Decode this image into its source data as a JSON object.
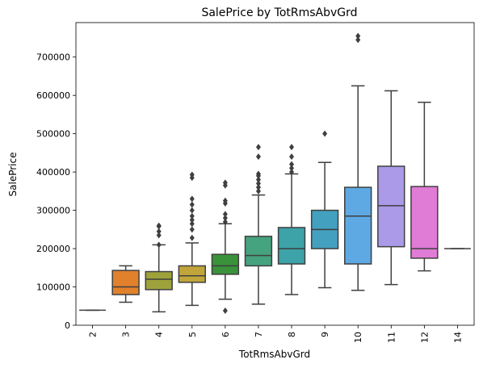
{
  "chart_data": {
    "type": "box",
    "title": "SalePrice by TotRmsAbvGrd",
    "xlabel": "TotRmsAbvGrd",
    "ylabel": "SalePrice",
    "ylim": [
      0,
      790000
    ],
    "yticks": [
      0,
      100000,
      200000,
      300000,
      400000,
      500000,
      600000,
      700000
    ],
    "grid": false,
    "boxes": [
      {
        "category": "2",
        "color": "#3274a1",
        "wlo": 39300,
        "q1": 39300,
        "median": 39300,
        "q3": 39300,
        "whi": 39300,
        "outliers": []
      },
      {
        "category": "3",
        "color": "#e1812c",
        "wlo": 60000,
        "q1": 80000,
        "median": 100000,
        "q3": 143000,
        "whi": 155000,
        "outliers": []
      },
      {
        "category": "4",
        "color": "#9da33a",
        "wlo": 35000,
        "q1": 93000,
        "median": 120000,
        "q3": 140000,
        "whi": 210000,
        "outliers": [
          210000,
          235000,
          245000,
          258000,
          260000
        ]
      },
      {
        "category": "5",
        "color": "#c1a53b",
        "wlo": 52000,
        "q1": 112000,
        "median": 129000,
        "q3": 155000,
        "whi": 215000,
        "outliers": [
          228000,
          250000,
          265000,
          275000,
          285000,
          300000,
          315000,
          330000,
          385000,
          393000
        ]
      },
      {
        "category": "6",
        "color": "#3a923a",
        "wlo": 68000,
        "q1": 133000,
        "median": 155000,
        "q3": 185000,
        "whi": 265000,
        "outliers": [
          37900,
          270000,
          280000,
          290000,
          318000,
          325000,
          365000,
          372000
        ]
      },
      {
        "category": "7",
        "color": "#45a37f",
        "wlo": 55000,
        "q1": 155000,
        "median": 182000,
        "q3": 232000,
        "whi": 340000,
        "outliers": [
          350000,
          360000,
          370000,
          380000,
          390000,
          395000,
          440000,
          465000
        ]
      },
      {
        "category": "8",
        "color": "#3da3a8",
        "wlo": 80000,
        "q1": 160000,
        "median": 200000,
        "q3": 255000,
        "whi": 395000,
        "outliers": [
          400000,
          410000,
          420000,
          440000,
          465000
        ]
      },
      {
        "category": "9",
        "color": "#44a0bf",
        "wlo": 98000,
        "q1": 200000,
        "median": 250000,
        "q3": 300000,
        "whi": 425000,
        "outliers": [
          500000
        ]
      },
      {
        "category": "10",
        "color": "#5ea9e3",
        "wlo": 91000,
        "q1": 160000,
        "median": 285000,
        "q3": 360000,
        "whi": 625000,
        "outliers": [
          745000,
          755000
        ]
      },
      {
        "category": "11",
        "color": "#ab9ae8",
        "wlo": 106000,
        "q1": 205000,
        "median": 312000,
        "q3": 415000,
        "whi": 612000,
        "outliers": []
      },
      {
        "category": "12",
        "color": "#e07bd6",
        "wlo": 142000,
        "q1": 175000,
        "median": 200000,
        "q3": 362000,
        "whi": 582000,
        "outliers": []
      },
      {
        "category": "14",
        "color": "#e5849d",
        "wlo": 200000,
        "q1": 200000,
        "median": 200000,
        "q3": 200000,
        "whi": 200000,
        "outliers": []
      }
    ]
  }
}
